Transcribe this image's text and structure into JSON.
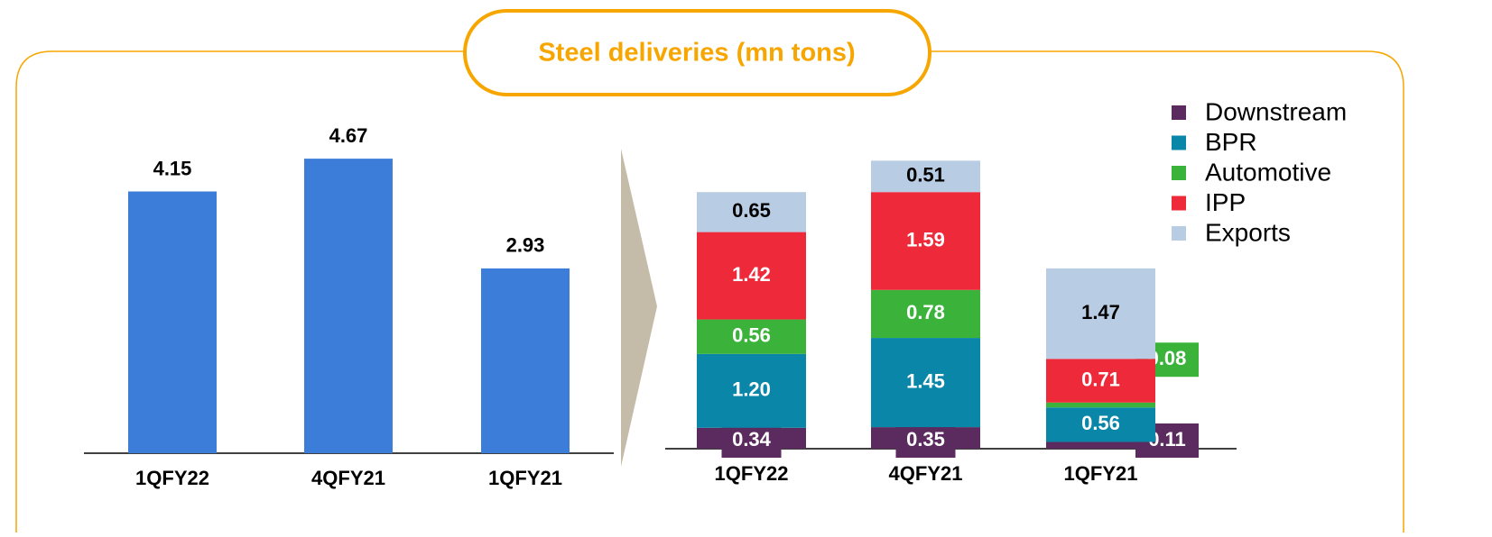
{
  "title": "Steel deliveries (mn tons)",
  "chart_data": [
    {
      "type": "bar",
      "categories": [
        "1QFY22",
        "4QFY21",
        "1QFY21"
      ],
      "values": [
        4.15,
        4.67,
        2.93
      ],
      "color": "#3b7dd8"
    },
    {
      "type": "stacked_bar",
      "categories": [
        "1QFY22",
        "4QFY21",
        "1QFY21"
      ],
      "series": [
        {
          "name": "Downstream",
          "color": "#5b2a5e",
          "values": [
            0.34,
            0.35,
            0.11
          ]
        },
        {
          "name": "BPR",
          "color": "#0a87a8",
          "values": [
            1.2,
            1.45,
            0.56
          ],
          "value_labels": [
            "1.20",
            "1.45",
            "0.56"
          ]
        },
        {
          "name": "Automotive",
          "color": "#3bb33b",
          "values": [
            0.56,
            0.78,
            0.08
          ]
        },
        {
          "name": "IPP",
          "color": "#ee2a3a",
          "values": [
            1.42,
            1.59,
            0.71
          ]
        },
        {
          "name": "Exports",
          "color": "#b8cce4",
          "values": [
            0.65,
            0.51,
            1.47
          ]
        }
      ],
      "legend": "upper right"
    }
  ]
}
